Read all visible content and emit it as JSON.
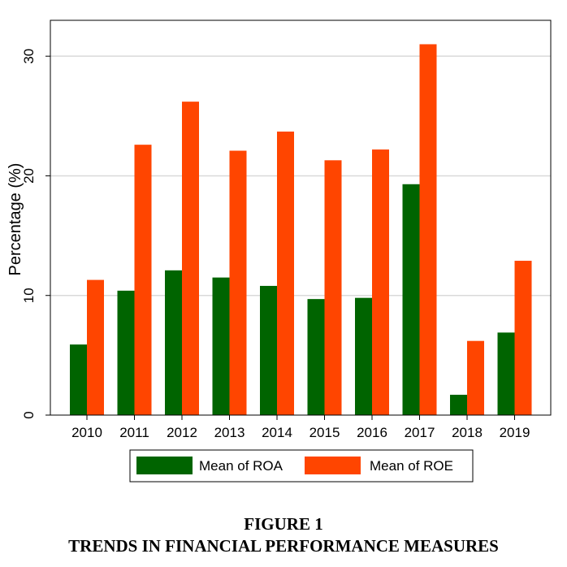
{
  "chart_data": {
    "type": "bar",
    "categories": [
      "2010",
      "2011",
      "2012",
      "2013",
      "2014",
      "2015",
      "2016",
      "2017",
      "2018",
      "2019"
    ],
    "series": [
      {
        "name": "Mean of ROA",
        "color": "#006400",
        "values": [
          5.9,
          10.4,
          12.1,
          11.5,
          10.8,
          9.7,
          9.8,
          19.3,
          1.7,
          6.9
        ]
      },
      {
        "name": "Mean of ROE",
        "color": "#ff4500",
        "values": [
          11.3,
          22.6,
          26.2,
          22.1,
          23.7,
          21.3,
          22.2,
          31.0,
          6.2,
          12.9
        ]
      }
    ],
    "ylabel": "Percentage (%)",
    "xlabel": "",
    "ylim": [
      0,
      33
    ],
    "yticks": [
      "0",
      "10",
      "20",
      "30"
    ],
    "grid": true,
    "legend_position": "bottom"
  },
  "caption": {
    "line1": "FIGURE 1",
    "line2": "TRENDS IN FINANCIAL PERFORMANCE MEASURES"
  }
}
